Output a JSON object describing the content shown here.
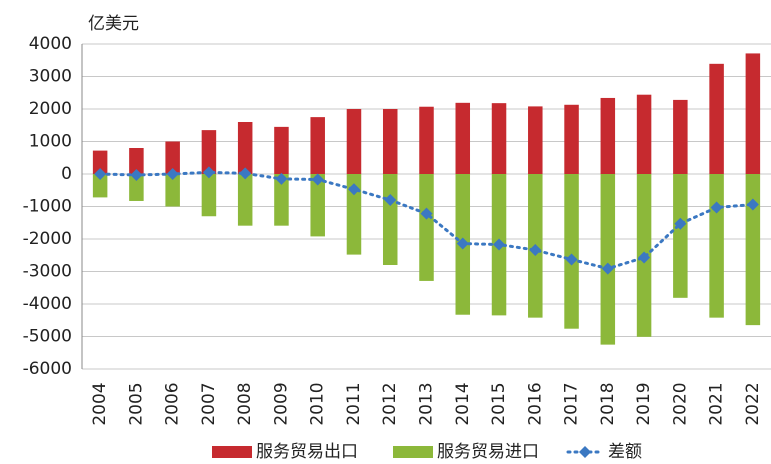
{
  "chart_data": {
    "type": "bar",
    "unit_label": "亿美元",
    "categories": [
      "2004",
      "2005",
      "2006",
      "2007",
      "2008",
      "2009",
      "2010",
      "2011",
      "2012",
      "2013",
      "2014",
      "2015",
      "2016",
      "2017",
      "2018",
      "2019",
      "2020",
      "2021",
      "2022"
    ],
    "series": [
      {
        "name": "服务贸易出口",
        "type": "bar",
        "color": "#c62a2f",
        "values": [
          720,
          800,
          1000,
          1350,
          1600,
          1450,
          1750,
          2000,
          2000,
          2070,
          2190,
          2180,
          2080,
          2130,
          2340,
          2440,
          2280,
          3390,
          3710
        ]
      },
      {
        "name": "服务贸易进口",
        "type": "bar",
        "color": "#8cb83a",
        "values": [
          -720,
          -830,
          -1000,
          -1300,
          -1590,
          -1590,
          -1920,
          -2480,
          -2800,
          -3290,
          -4330,
          -4350,
          -4420,
          -4760,
          -5250,
          -5010,
          -3810,
          -4420,
          -4650
        ]
      },
      {
        "name": "差额",
        "type": "line",
        "color": "#3b78c2",
        "values": [
          0,
          -30,
          0,
          50,
          20,
          -150,
          -170,
          -470,
          -800,
          -1220,
          -2140,
          -2170,
          -2340,
          -2630,
          -2910,
          -2570,
          -1530,
          -1030,
          -940
        ]
      }
    ],
    "ylim": [
      -6000,
      4000
    ],
    "yticks": [
      4000,
      3000,
      2000,
      1000,
      0,
      -1000,
      -2000,
      -3000,
      -4000,
      -5000,
      -6000
    ],
    "grid": true
  }
}
